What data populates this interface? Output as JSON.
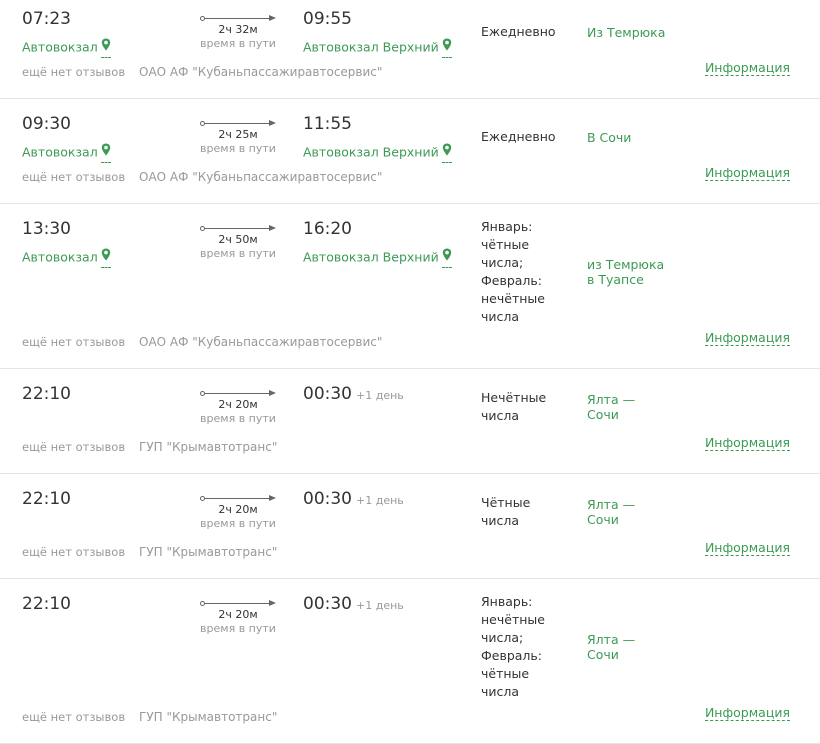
{
  "labels": {
    "travel_time": "время в пути",
    "reviews": "ещё нет отзывов",
    "info": "Информация",
    "next_day": "+1 день"
  },
  "colors": {
    "accent": "#3d9a55",
    "muted": "#999999"
  },
  "rows": [
    {
      "dep_time": "07:23",
      "dep_station": "Автовокзал",
      "duration": "2ч 32м",
      "arr_time": "09:55",
      "next_day": false,
      "arr_station": "Автовокзал Верхний",
      "schedule": [
        "Ежедневно"
      ],
      "route": [
        "Из Темрюка"
      ],
      "carrier": "ОАО АФ \"Кубаньпассажиравтосервис\""
    },
    {
      "dep_time": "09:30",
      "dep_station": "Автовокзал",
      "duration": "2ч 25м",
      "arr_time": "11:55",
      "next_day": false,
      "arr_station": "Автовокзал Верхний",
      "schedule": [
        "Ежедневно"
      ],
      "route": [
        "В Сочи"
      ],
      "carrier": "ОАО АФ \"Кубаньпассажиравтосервис\""
    },
    {
      "dep_time": "13:30",
      "dep_station": "Автовокзал",
      "duration": "2ч 50м",
      "arr_time": "16:20",
      "next_day": false,
      "arr_station": "Автовокзал Верхний",
      "schedule": [
        "Январь:",
        "чётные",
        "числа;",
        "Февраль:",
        "нечётные",
        "числа"
      ],
      "route": [
        "из Темрюка",
        "в Туапсе"
      ],
      "carrier": "ОАО АФ \"Кубаньпассажиравтосервис\""
    },
    {
      "dep_time": "22:10",
      "dep_station": "",
      "duration": "2ч 20м",
      "arr_time": "00:30",
      "next_day": true,
      "arr_station": "",
      "schedule": [
        "Нечётные",
        "числа"
      ],
      "route": [
        "Ялта —",
        "Сочи"
      ],
      "carrier": "ГУП \"Крымавтотранс\""
    },
    {
      "dep_time": "22:10",
      "dep_station": "",
      "duration": "2ч 20м",
      "arr_time": "00:30",
      "next_day": true,
      "arr_station": "",
      "schedule": [
        "Чётные",
        "числа"
      ],
      "route": [
        "Ялта —",
        "Сочи"
      ],
      "carrier": "ГУП \"Крымавтотранс\""
    },
    {
      "dep_time": "22:10",
      "dep_station": "",
      "duration": "2ч 20м",
      "arr_time": "00:30",
      "next_day": true,
      "arr_station": "",
      "schedule": [
        "Январь:",
        "нечётные",
        "числа;",
        "Февраль:",
        "чётные",
        "числа"
      ],
      "route": [
        "Ялта —",
        "Сочи"
      ],
      "carrier": "ГУП \"Крымавтотранс\""
    }
  ]
}
